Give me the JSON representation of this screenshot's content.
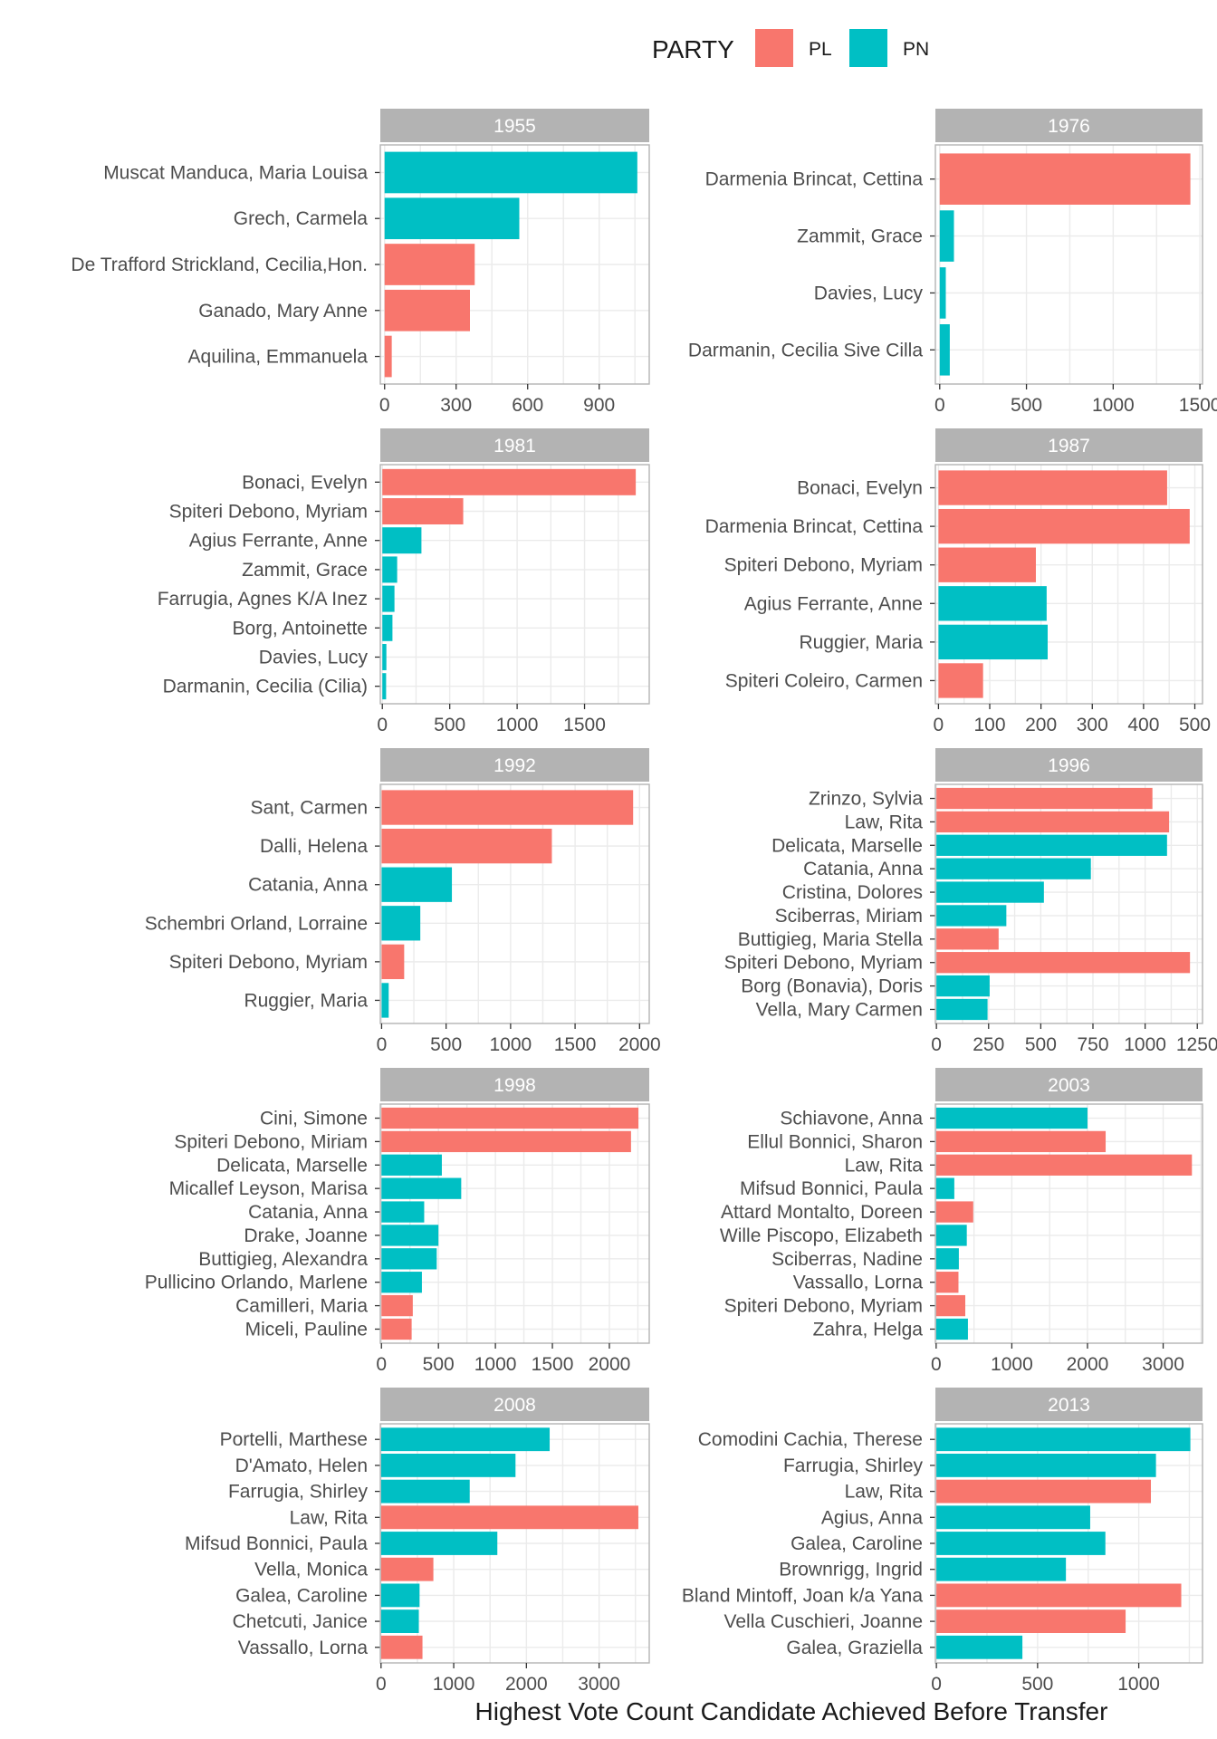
{
  "chart_data": {
    "type": "bar",
    "orientation": "horizontal",
    "facet_columns": 2,
    "xlabel": "Highest Vote Count Candidate Achieved Before Transfer",
    "ylabel": "",
    "grid": true,
    "legend": {
      "title": "PARTY",
      "placement": "top",
      "entries": [
        {
          "label": "PL",
          "color": "#F8766D"
        },
        {
          "label": "PN",
          "color": "#00BFC4"
        }
      ]
    },
    "colors": {
      "PL": "#F8766D",
      "PN": "#00BFC4",
      "strip": "#b3b3b3",
      "grid": "#ebebeb",
      "panel_border": "#b3b3b3"
    },
    "panels": [
      {
        "year": "1955",
        "xlim": [
          -18,
          1110
        ],
        "ticks": [
          0,
          300,
          600,
          900
        ],
        "bars": [
          {
            "name": "Muscat Manduca, Maria Louisa",
            "party": "PN",
            "value": 1060
          },
          {
            "name": "Grech, Carmela",
            "party": "PN",
            "value": 565
          },
          {
            "name": "De Trafford Strickland, Cecilia,Hon.",
            "party": "PL",
            "value": 378
          },
          {
            "name": "Ganado, Mary Anne",
            "party": "PL",
            "value": 358
          },
          {
            "name": "Aquilina, Emmanuela",
            "party": "PL",
            "value": 30
          }
        ]
      },
      {
        "year": "1976",
        "xlim": [
          -25,
          1515
        ],
        "ticks": [
          0,
          500,
          1000,
          1500
        ],
        "bars": [
          {
            "name": "Darmenia Brincat, Cettina",
            "party": "PL",
            "value": 1445
          },
          {
            "name": "Zammit, Grace",
            "party": "PN",
            "value": 82
          },
          {
            "name": "Davies, Lucy",
            "party": "PN",
            "value": 35
          },
          {
            "name": "Darmanin, Cecilia Sive Cilla",
            "party": "PN",
            "value": 58
          }
        ]
      },
      {
        "year": "1981",
        "xlim": [
          -15,
          1980
        ],
        "ticks": [
          0,
          500,
          1000,
          1500
        ],
        "bars": [
          {
            "name": "Bonaci, Evelyn",
            "party": "PL",
            "value": 1880
          },
          {
            "name": "Spiteri Debono, Myriam",
            "party": "PL",
            "value": 600
          },
          {
            "name": "Agius Ferrante, Anne",
            "party": "PN",
            "value": 290
          },
          {
            "name": "Zammit, Grace",
            "party": "PN",
            "value": 110
          },
          {
            "name": "Farrugia, Agnes K/A Inez",
            "party": "PN",
            "value": 90
          },
          {
            "name": "Borg, Antoinette",
            "party": "PN",
            "value": 75
          },
          {
            "name": "Davies, Lucy",
            "party": "PN",
            "value": 30
          },
          {
            "name": "Darmanin, Cecilia (Cilia)",
            "party": "PN",
            "value": 28
          }
        ]
      },
      {
        "year": "1987",
        "xlim": [
          -6,
          515
        ],
        "ticks": [
          0,
          100,
          200,
          300,
          400,
          500
        ],
        "bars": [
          {
            "name": "Bonaci, Evelyn",
            "party": "PL",
            "value": 446
          },
          {
            "name": "Darmenia Brincat, Cettina",
            "party": "PL",
            "value": 490
          },
          {
            "name": "Spiteri Debono, Myriam",
            "party": "PL",
            "value": 190
          },
          {
            "name": "Agius Ferrante, Anne",
            "party": "PN",
            "value": 211
          },
          {
            "name": "Ruggier, Maria",
            "party": "PN",
            "value": 213
          },
          {
            "name": "Spiteri Coleiro, Carmen",
            "party": "PL",
            "value": 87
          }
        ]
      },
      {
        "year": "1992",
        "xlim": [
          -10,
          2075
        ],
        "ticks": [
          0,
          500,
          1000,
          1500,
          2000
        ],
        "bars": [
          {
            "name": "Sant, Carmen",
            "party": "PL",
            "value": 1950
          },
          {
            "name": "Dalli, Helena",
            "party": "PL",
            "value": 1320
          },
          {
            "name": "Catania, Anna",
            "party": "PN",
            "value": 545
          },
          {
            "name": "Schembri Orland, Lorraine",
            "party": "PN",
            "value": 300
          },
          {
            "name": "Spiteri Debono, Myriam",
            "party": "PL",
            "value": 175
          },
          {
            "name": "Ruggier, Maria",
            "party": "PN",
            "value": 55
          }
        ]
      },
      {
        "year": "1996",
        "xlim": [
          -5,
          1275
        ],
        "ticks": [
          0,
          250,
          500,
          750,
          1000,
          1250
        ],
        "bars": [
          {
            "name": "Zrinzo, Sylvia",
            "party": "PL",
            "value": 1035
          },
          {
            "name": "Law, Rita",
            "party": "PL",
            "value": 1115
          },
          {
            "name": "Delicata, Marselle",
            "party": "PN",
            "value": 1105
          },
          {
            "name": "Catania, Anna",
            "party": "PN",
            "value": 740
          },
          {
            "name": "Cristina, Dolores",
            "party": "PN",
            "value": 515
          },
          {
            "name": "Sciberras, Miriam",
            "party": "PN",
            "value": 335
          },
          {
            "name": "Buttigieg, Maria Stella",
            "party": "PL",
            "value": 298
          },
          {
            "name": "Spiteri Debono, Myriam",
            "party": "PL",
            "value": 1215
          },
          {
            "name": "Borg (Bonavia), Doris",
            "party": "PN",
            "value": 255
          },
          {
            "name": "Vella, Mary Carmen",
            "party": "PN",
            "value": 245
          }
        ]
      },
      {
        "year": "1998",
        "xlim": [
          -10,
          2350
        ],
        "ticks": [
          0,
          500,
          1000,
          1500,
          2000
        ],
        "bars": [
          {
            "name": "Cini, Simone",
            "party": "PL",
            "value": 2255
          },
          {
            "name": "Spiteri Debono, Miriam",
            "party": "PL",
            "value": 2190
          },
          {
            "name": "Delicata, Marselle",
            "party": "PN",
            "value": 530
          },
          {
            "name": "Micallef Leyson, Marisa",
            "party": "PN",
            "value": 700
          },
          {
            "name": "Catania, Anna",
            "party": "PN",
            "value": 375
          },
          {
            "name": "Drake, Joanne",
            "party": "PN",
            "value": 500
          },
          {
            "name": "Buttigieg, Alexandra",
            "party": "PN",
            "value": 485
          },
          {
            "name": "Pullicino Orlando, Marlene",
            "party": "PN",
            "value": 355
          },
          {
            "name": "Camilleri, Maria",
            "party": "PL",
            "value": 275
          },
          {
            "name": "Miceli, Pauline",
            "party": "PL",
            "value": 265
          }
        ]
      },
      {
        "year": "2003",
        "xlim": [
          -10,
          3520
        ],
        "ticks": [
          0,
          1000,
          2000,
          3000
        ],
        "bars": [
          {
            "name": "Schiavone, Anna",
            "party": "PN",
            "value": 2000
          },
          {
            "name": "Ellul Bonnici, Sharon",
            "party": "PL",
            "value": 2240
          },
          {
            "name": "Law, Rita",
            "party": "PL",
            "value": 3380
          },
          {
            "name": "Mifsud Bonnici, Paula",
            "party": "PN",
            "value": 240
          },
          {
            "name": "Attard Montalto, Doreen",
            "party": "PL",
            "value": 490
          },
          {
            "name": "Wille Piscopo, Elizabeth",
            "party": "PN",
            "value": 405
          },
          {
            "name": "Sciberras, Nadine",
            "party": "PN",
            "value": 300
          },
          {
            "name": "Vassallo, Lorna",
            "party": "PL",
            "value": 295
          },
          {
            "name": "Spiteri Debono, Myriam",
            "party": "PL",
            "value": 385
          },
          {
            "name": "Zahra, Helga",
            "party": "PN",
            "value": 420
          }
        ]
      },
      {
        "year": "2008",
        "xlim": [
          -10,
          3690
        ],
        "ticks": [
          0,
          1000,
          2000,
          3000
        ],
        "bars": [
          {
            "name": "Portelli, Marthese",
            "party": "PN",
            "value": 2320
          },
          {
            "name": "D'Amato, Helen",
            "party": "PN",
            "value": 1850
          },
          {
            "name": "Farrugia, Shirley",
            "party": "PN",
            "value": 1220
          },
          {
            "name": "Law, Rita",
            "party": "PL",
            "value": 3540
          },
          {
            "name": "Mifsud Bonnici, Paula",
            "party": "PN",
            "value": 1600
          },
          {
            "name": "Vella, Monica",
            "party": "PL",
            "value": 720
          },
          {
            "name": "Galea, Caroline",
            "party": "PN",
            "value": 530
          },
          {
            "name": "Chetcuti, Janice",
            "party": "PN",
            "value": 520
          },
          {
            "name": "Vassallo, Lorna",
            "party": "PL",
            "value": 570
          }
        ]
      },
      {
        "year": "2013",
        "xlim": [
          -5,
          1315
        ],
        "ticks": [
          0,
          500,
          1000
        ],
        "bars": [
          {
            "name": "Comodini Cachia, Therese",
            "party": "PN",
            "value": 1255
          },
          {
            "name": "Farrugia, Shirley",
            "party": "PN",
            "value": 1085
          },
          {
            "name": "Law, Rita",
            "party": "PL",
            "value": 1060
          },
          {
            "name": "Agius, Anna",
            "party": "PN",
            "value": 760
          },
          {
            "name": "Galea, Caroline",
            "party": "PN",
            "value": 835
          },
          {
            "name": "Brownrigg, Ingrid",
            "party": "PN",
            "value": 640
          },
          {
            "name": "Bland Mintoff, Joan k/a Yana",
            "party": "PL",
            "value": 1210
          },
          {
            "name": "Vella Cuschieri, Joanne",
            "party": "PL",
            "value": 935
          },
          {
            "name": "Galea, Graziella",
            "party": "PN",
            "value": 425
          }
        ]
      }
    ]
  }
}
